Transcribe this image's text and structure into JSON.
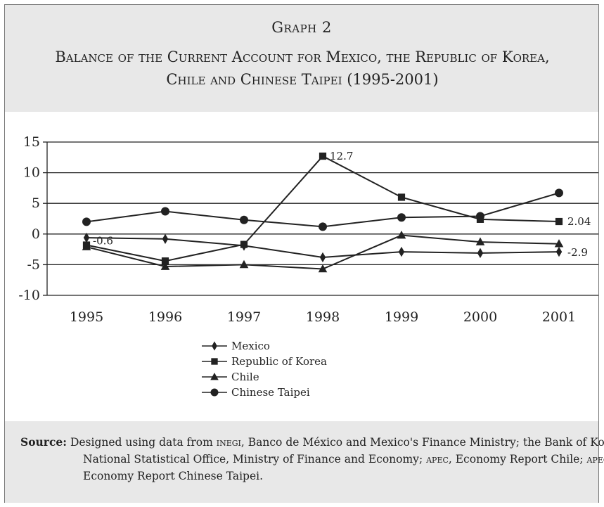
{
  "header": {
    "graph_number": "Graph 2",
    "title_line1": "Balance of the Current Account for Mexico, the Republic of Korea,",
    "title_line2": "Chile and Chinese Taipei (1995-2001)"
  },
  "chart_data": {
    "type": "line",
    "title": "",
    "xlabel": "",
    "ylabel": "",
    "categories": [
      "1995",
      "1996",
      "1997",
      "1998",
      "1999",
      "2000",
      "2001"
    ],
    "ylim": [
      -10,
      15
    ],
    "yticks": [
      15,
      10,
      5,
      0,
      -5,
      -10
    ],
    "grid": "horizontal",
    "legend_position": "below",
    "series": [
      {
        "name": "Mexico",
        "marker": "diamond",
        "values": [
          -0.6,
          -0.8,
          -1.9,
          -3.8,
          -2.9,
          -3.1,
          -2.9
        ]
      },
      {
        "name": "Republic of Korea",
        "marker": "square",
        "values": [
          -1.8,
          -4.4,
          -1.7,
          12.7,
          6.0,
          2.4,
          2.04
        ]
      },
      {
        "name": "Chile",
        "marker": "triangle",
        "values": [
          -2.1,
          -5.3,
          -5.0,
          -5.7,
          -0.2,
          -1.3,
          -1.6
        ]
      },
      {
        "name": "Chinese Taipei",
        "marker": "circle",
        "values": [
          2.0,
          3.7,
          2.3,
          1.2,
          2.7,
          2.9,
          6.7
        ]
      }
    ],
    "annotations": [
      {
        "text": "12.7",
        "series": "Republic of Korea",
        "category": "1998"
      },
      {
        "text": "-0.6",
        "series": "Mexico",
        "category": "1995"
      },
      {
        "text": "2.04",
        "series": "Republic of Korea",
        "category": "2001"
      },
      {
        "text": "-2.9",
        "series": "Mexico",
        "category": "2001"
      }
    ]
  },
  "footer": {
    "source_label": "Source:",
    "source_text_1": "Designed using data from ",
    "inegi": "inegi",
    "source_text_2": ", Banco de México and Mexico's Finance Ministry; the Bank of Korea, National Statistical Office, Ministry of Finance and Economy; ",
    "apec_1": "apec",
    "source_text_3": ", Economy Report Chile; ",
    "apec_2": "apec",
    "source_text_4": ", Economy Report Chinese Taipei."
  },
  "colors": {
    "line": "#222222",
    "header_bg": "#e8e8e8",
    "border": "#777777"
  }
}
